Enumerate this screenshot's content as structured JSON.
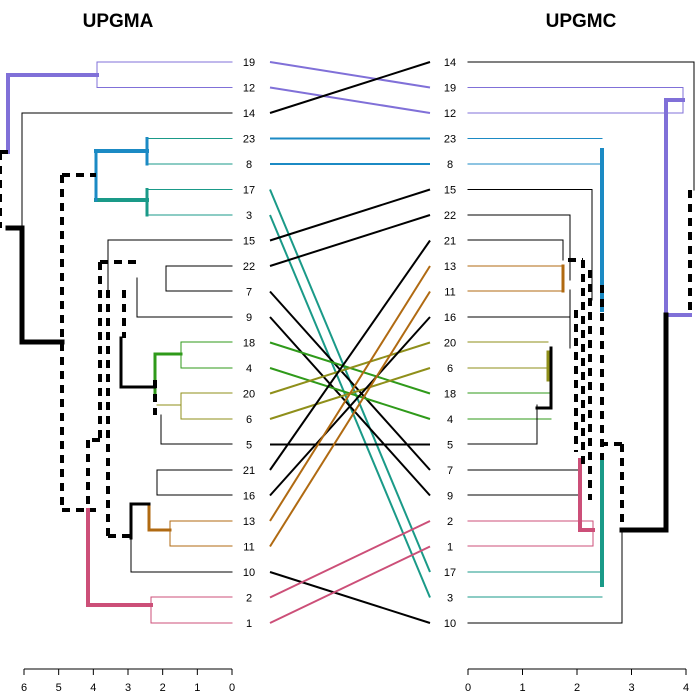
{
  "left_tree": {
    "title": "UPGMA",
    "leaves": [
      "19",
      "12",
      "14",
      "23",
      "8",
      "17",
      "3",
      "15",
      "22",
      "7",
      "9",
      "18",
      "4",
      "20",
      "6",
      "5",
      "21",
      "16",
      "13",
      "11",
      "10",
      "2",
      "1"
    ],
    "axis_ticks": [
      "6",
      "5",
      "4",
      "3",
      "2",
      "1",
      "0"
    ]
  },
  "right_tree": {
    "title": "UPGMC",
    "leaves": [
      "14",
      "19",
      "12",
      "23",
      "8",
      "15",
      "22",
      "21",
      "13",
      "11",
      "16",
      "20",
      "6",
      "18",
      "4",
      "5",
      "7",
      "9",
      "2",
      "1",
      "17",
      "3",
      "10"
    ],
    "axis_ticks": [
      "0",
      "1",
      "2",
      "3",
      "4"
    ]
  },
  "colors": {
    "default": "#000000",
    "purple": "#8070d8",
    "blue": "#1b8ac4",
    "teal": "#1a9a88",
    "orange": "#b06a12",
    "green": "#2f9a1a",
    "olive": "#8f8f1a",
    "pink": "#cc4f78"
  },
  "connector_colors": {
    "19": "purple",
    "12": "purple",
    "14": "default",
    "23": "blue",
    "8": "blue",
    "17": "teal",
    "3": "teal",
    "15": "default",
    "22": "default",
    "7": "default",
    "9": "default",
    "18": "green",
    "4": "green",
    "20": "olive",
    "6": "olive",
    "5": "default",
    "21": "default",
    "16": "default",
    "13": "orange",
    "11": "orange",
    "10": "default",
    "2": "pink",
    "1": "pink"
  }
}
